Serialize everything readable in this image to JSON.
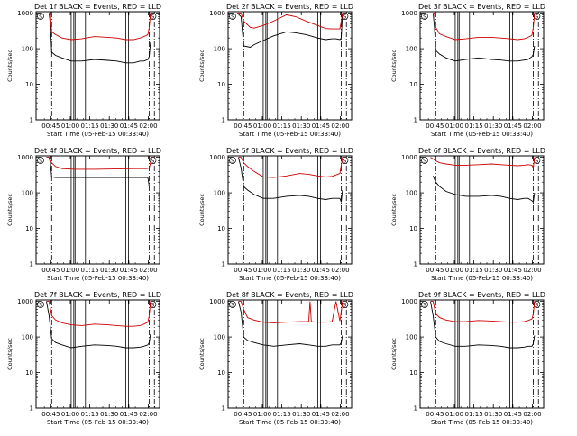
{
  "colors": {
    "events": "#000000",
    "lld": "#cc0000",
    "axis": "#000000",
    "background": "#ffffff"
  },
  "shared": {
    "ylabel": "Counts/sec",
    "xlabel": "Start Time (05-Feb-15 00:33:40)",
    "xticks": [
      "00:45",
      "01:00",
      "01:15",
      "01:30",
      "01:45",
      "02:00"
    ],
    "yticks": [
      "1",
      "10",
      "100",
      "1000"
    ],
    "corner_left": "S",
    "corner_right": "S"
  },
  "chart_data": [
    {
      "type": "line",
      "title": "Det 1f BLACK = Events, RED = LLD",
      "x_unit": "minutes since 00:33:40",
      "xlim": [
        0,
        95
      ],
      "ylim": [
        1,
        1100
      ],
      "yscale": "log",
      "dashdot_lines": [
        12,
        87,
        91
      ],
      "solid_lines": [
        27,
        29,
        30,
        38,
        69,
        71
      ],
      "series": [
        {
          "name": "Events",
          "x": [
            10,
            11,
            12,
            15,
            20,
            27,
            35,
            45,
            55,
            62,
            69,
            75,
            80,
            83,
            86,
            87,
            88
          ],
          "values": [
            1000,
            500,
            80,
            65,
            55,
            45,
            45,
            50,
            47,
            45,
            40,
            40,
            45,
            45,
            50,
            60,
            150
          ]
        },
        {
          "name": "LLD",
          "x": [
            10,
            11,
            12,
            15,
            20,
            27,
            35,
            45,
            55,
            62,
            69,
            75,
            80,
            83,
            86,
            87,
            88,
            89
          ],
          "values": [
            1000,
            1000,
            300,
            250,
            200,
            180,
            190,
            220,
            210,
            200,
            180,
            180,
            200,
            220,
            250,
            400,
            1000,
            1000
          ]
        }
      ]
    },
    {
      "type": "line",
      "title": "Det 2f BLACK = Events, RED = LLD",
      "x_unit": "minutes since 00:33:40",
      "xlim": [
        0,
        95
      ],
      "ylim": [
        1,
        1100
      ],
      "yscale": "log",
      "dashdot_lines": [
        12,
        87,
        91
      ],
      "solid_lines": [
        27,
        29,
        30,
        38,
        69,
        71
      ],
      "series": [
        {
          "name": "Events",
          "x": [
            7,
            10,
            12,
            17,
            20,
            27,
            35,
            45,
            52,
            60,
            69,
            75,
            80,
            83,
            86,
            87,
            88
          ],
          "values": [
            1000,
            800,
            120,
            110,
            130,
            170,
            230,
            300,
            280,
            250,
            200,
            180,
            190,
            190,
            180,
            200,
            1000
          ]
        },
        {
          "name": "LLD",
          "x": [
            7,
            10,
            12,
            17,
            20,
            27,
            35,
            45,
            52,
            60,
            69,
            75,
            80,
            83,
            86,
            87,
            88,
            89
          ],
          "values": [
            1000,
            1000,
            600,
            400,
            380,
            450,
            600,
            900,
            800,
            600,
            450,
            370,
            360,
            360,
            360,
            600,
            1000,
            1000
          ]
        }
      ]
    },
    {
      "type": "line",
      "title": "Det 3f BLACK = Events, RED = LLD",
      "x_unit": "minutes since 00:33:40",
      "xlim": [
        0,
        95
      ],
      "ylim": [
        1,
        1100
      ],
      "yscale": "log",
      "dashdot_lines": [
        12,
        87,
        91
      ],
      "solid_lines": [
        27,
        29,
        30,
        38,
        69,
        71
      ],
      "series": [
        {
          "name": "Events",
          "x": [
            10,
            11,
            12,
            15,
            20,
            27,
            35,
            45,
            55,
            62,
            69,
            75,
            80,
            83,
            86,
            87,
            88
          ],
          "values": [
            1000,
            400,
            90,
            70,
            55,
            45,
            50,
            55,
            50,
            48,
            45,
            45,
            48,
            50,
            60,
            70,
            120
          ]
        },
        {
          "name": "LLD",
          "x": [
            10,
            11,
            12,
            15,
            20,
            27,
            35,
            45,
            55,
            62,
            69,
            75,
            80,
            83,
            86,
            87,
            88,
            89
          ],
          "values": [
            1000,
            1000,
            400,
            260,
            220,
            180,
            190,
            210,
            210,
            200,
            190,
            180,
            190,
            210,
            240,
            400,
            1000,
            1000
          ]
        }
      ]
    },
    {
      "type": "line",
      "title": "Det 4f BLACK = Events, RED = LLD",
      "x_unit": "minutes since 00:33:40",
      "xlim": [
        0,
        95
      ],
      "ylim": [
        1,
        1100
      ],
      "yscale": "log",
      "dashdot_lines": [
        12,
        87,
        91
      ],
      "solid_lines": [
        27,
        29,
        30,
        38,
        69,
        71
      ],
      "series": [
        {
          "name": "Events",
          "x": [
            10,
            11,
            12,
            15,
            20,
            30,
            45,
            60,
            75,
            85,
            86,
            87
          ],
          "values": [
            1000,
            700,
            280,
            270,
            270,
            270,
            270,
            270,
            270,
            270,
            270,
            150
          ]
        },
        {
          "name": "LLD",
          "x": [
            8,
            10,
            12,
            15,
            20,
            30,
            45,
            60,
            75,
            85,
            87,
            88,
            89,
            90
          ],
          "values": [
            1000,
            1000,
            700,
            550,
            480,
            460,
            460,
            470,
            480,
            480,
            500,
            700,
            1000,
            1000
          ]
        }
      ]
    },
    {
      "type": "line",
      "title": "Det 5f BLACK = Events, RED = LLD",
      "x_unit": "minutes since 00:33:40",
      "xlim": [
        0,
        95
      ],
      "ylim": [
        1,
        1100
      ],
      "yscale": "log",
      "dashdot_lines": [
        12,
        87,
        91
      ],
      "solid_lines": [
        27,
        29,
        30,
        38,
        69,
        71
      ],
      "series": [
        {
          "name": "Events",
          "x": [
            8,
            10,
            12,
            15,
            20,
            27,
            35,
            45,
            55,
            62,
            69,
            75,
            80,
            83,
            86,
            87,
            88
          ],
          "values": [
            1000,
            500,
            150,
            120,
            90,
            70,
            70,
            80,
            85,
            80,
            70,
            65,
            70,
            70,
            70,
            55,
            120
          ]
        },
        {
          "name": "LLD",
          "x": [
            8,
            10,
            12,
            15,
            20,
            27,
            35,
            45,
            55,
            62,
            69,
            75,
            80,
            83,
            86,
            87,
            88,
            89
          ],
          "values": [
            1000,
            1000,
            700,
            550,
            400,
            280,
            270,
            300,
            350,
            330,
            300,
            280,
            290,
            320,
            350,
            600,
            1000,
            1000
          ]
        }
      ]
    },
    {
      "type": "line",
      "title": "Det 6f BLACK = Events, RED = LLD",
      "x_unit": "minutes since 00:33:40",
      "xlim": [
        0,
        95
      ],
      "ylim": [
        1,
        1100
      ],
      "yscale": "log",
      "dashdot_lines": [
        12,
        87,
        91
      ],
      "solid_lines": [
        27,
        29,
        30,
        38,
        69,
        71
      ],
      "series": [
        {
          "name": "Events",
          "x": [
            10,
            12,
            15,
            20,
            27,
            35,
            45,
            55,
            62,
            69,
            75,
            80,
            83,
            86,
            87,
            88
          ],
          "values": [
            300,
            200,
            150,
            110,
            90,
            80,
            80,
            85,
            80,
            70,
            65,
            70,
            70,
            60,
            55,
            100
          ]
        },
        {
          "name": "LLD",
          "x": [
            8,
            10,
            12,
            15,
            20,
            27,
            35,
            45,
            55,
            62,
            69,
            75,
            80,
            83,
            86,
            87,
            88
          ],
          "values": [
            1000,
            900,
            800,
            700,
            650,
            600,
            600,
            620,
            650,
            620,
            600,
            580,
            600,
            620,
            600,
            500,
            1000
          ]
        }
      ]
    },
    {
      "type": "line",
      "title": "Det 7f BLACK = Events, RED = LLD",
      "x_unit": "minutes since 00:33:40",
      "xlim": [
        0,
        95
      ],
      "ylim": [
        1,
        1100
      ],
      "yscale": "log",
      "dashdot_lines": [
        12,
        87,
        91
      ],
      "solid_lines": [
        27,
        29,
        30,
        38,
        69,
        71
      ],
      "series": [
        {
          "name": "Events",
          "x": [
            8,
            10,
            12,
            15,
            20,
            27,
            35,
            45,
            55,
            62,
            69,
            75,
            80,
            83,
            86,
            87,
            88
          ],
          "values": [
            1000,
            400,
            90,
            70,
            60,
            50,
            55,
            60,
            58,
            55,
            50,
            50,
            52,
            55,
            60,
            70,
            120
          ]
        },
        {
          "name": "LLD",
          "x": [
            8,
            10,
            12,
            15,
            20,
            27,
            35,
            45,
            55,
            62,
            69,
            75,
            80,
            83,
            86,
            87,
            88,
            89
          ],
          "values": [
            1000,
            1000,
            400,
            300,
            250,
            220,
            210,
            230,
            220,
            210,
            200,
            200,
            210,
            230,
            260,
            400,
            1000,
            1000
          ]
        }
      ]
    },
    {
      "type": "line",
      "title": "Det 8f BLACK = Events, RED = LLD",
      "x_unit": "minutes since 00:33:40",
      "xlim": [
        0,
        95
      ],
      "ylim": [
        1,
        1100
      ],
      "yscale": "log",
      "dashdot_lines": [
        12,
        87,
        91
      ],
      "solid_lines": [
        27,
        29,
        30,
        38,
        69,
        71
      ],
      "series": [
        {
          "name": "Events",
          "x": [
            8,
            10,
            12,
            15,
            20,
            27,
            35,
            45,
            55,
            62,
            69,
            75,
            80,
            83,
            86,
            87,
            88
          ],
          "values": [
            1000,
            500,
            100,
            80,
            70,
            60,
            55,
            60,
            65,
            60,
            55,
            55,
            60,
            60,
            60,
            70,
            110
          ]
        },
        {
          "name": "LLD",
          "x": [
            8,
            10,
            12,
            15,
            20,
            27,
            35,
            45,
            55,
            62,
            63,
            64,
            69,
            75,
            80,
            83,
            86,
            87,
            88,
            89
          ],
          "values": [
            1000,
            1000,
            600,
            350,
            300,
            260,
            250,
            260,
            270,
            270,
            1000,
            270,
            260,
            260,
            270,
            1000,
            280,
            500,
            1000,
            1000
          ]
        }
      ]
    },
    {
      "type": "line",
      "title": "Det 9f BLACK = Events, RED = LLD",
      "x_unit": "minutes since 00:33:40",
      "xlim": [
        0,
        95
      ],
      "ylim": [
        1,
        1100
      ],
      "yscale": "log",
      "dashdot_lines": [
        12,
        87,
        91
      ],
      "solid_lines": [
        27,
        29,
        30,
        38,
        69,
        71
      ],
      "series": [
        {
          "name": "Events",
          "x": [
            8,
            10,
            12,
            15,
            20,
            27,
            35,
            45,
            55,
            62,
            69,
            75,
            80,
            83,
            86,
            87,
            88
          ],
          "values": [
            1000,
            400,
            100,
            75,
            65,
            55,
            55,
            60,
            58,
            55,
            50,
            50,
            52,
            55,
            55,
            65,
            110
          ]
        },
        {
          "name": "LLD",
          "x": [
            8,
            10,
            12,
            15,
            20,
            27,
            35,
            45,
            55,
            62,
            69,
            75,
            80,
            83,
            86,
            87,
            88,
            89
          ],
          "values": [
            1000,
            1000,
            450,
            350,
            300,
            270,
            270,
            290,
            280,
            270,
            260,
            260,
            270,
            290,
            320,
            450,
            1000,
            1000
          ]
        }
      ]
    }
  ]
}
